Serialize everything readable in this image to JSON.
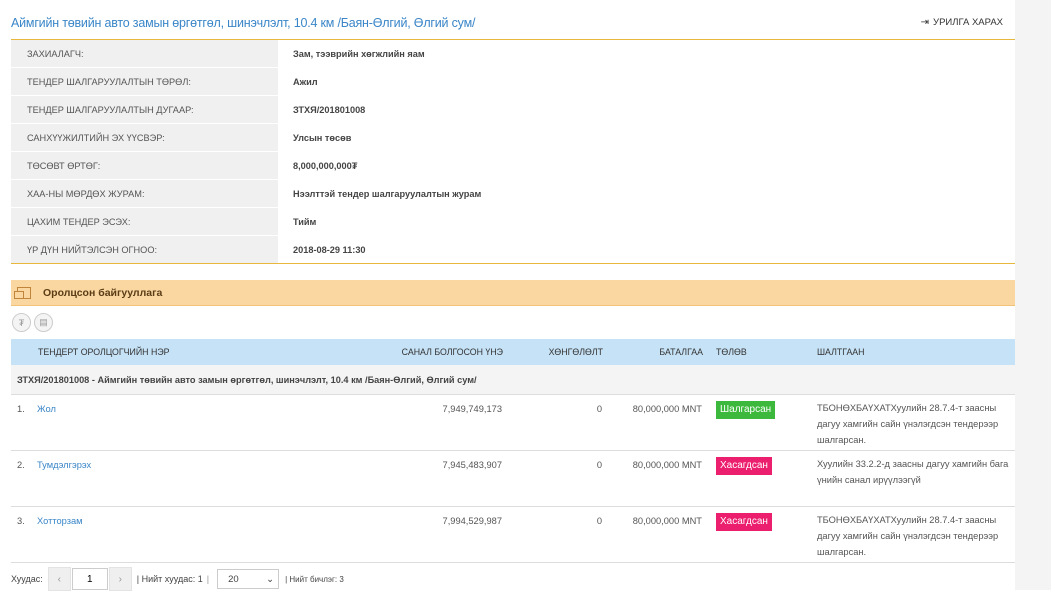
{
  "header": {
    "title": "Аймгийн төвийн авто замын өргөтгөл, шинэчлэлт, 10.4 км /Баян-Өлгий, Өлгий сум/",
    "back_label": "УРИЛГА ХАРАХ",
    "back_icon": "sign-out-icon"
  },
  "info": [
    {
      "label": "ЗАХИАЛАГЧ:",
      "value": "Зам, тээврийн хөгжлийн яам"
    },
    {
      "label": "ТЕНДЕР ШАЛГАРУУЛАЛТЫН ТӨРӨЛ:",
      "value": "Ажил"
    },
    {
      "label": "ТЕНДЕР ШАЛГАРУУЛАЛТЫН ДУГААР:",
      "value": "ЗТХЯ/201801008"
    },
    {
      "label": "САНХҮҮЖИЛТИЙН ЭХ ҮҮСВЭР:",
      "value": "Улсын төсөв"
    },
    {
      "label": "ТӨСӨВТ ӨРТӨГ:",
      "value": "8,000,000,000₮"
    },
    {
      "label": "ХАА-НЫ МӨРДӨХ ЖУРАМ:",
      "value": "Нээлттэй тендер шалгаруулалтын журам"
    },
    {
      "label": "ЦАХИМ ТЕНДЕР ЭСЭХ:",
      "value": "Тийм"
    },
    {
      "label": "ҮР ДҮН НИЙТЭЛСЭН ОГНОО:",
      "value": "2018-08-29 11:30"
    }
  ],
  "participants": {
    "title": "Оролцсон байгууллага",
    "filter_icons": [
      "currency-icon",
      "document-icon"
    ],
    "columns": {
      "name": "ТЕНДЕРТ ОРОЛЦОГЧИЙН НЭР",
      "price": "САНАЛ БОЛГОСОН ҮНЭ",
      "discount": "ХӨНГӨЛӨЛТ",
      "guarantee": "БАТАЛГАА",
      "status": "ТӨЛӨВ",
      "reason": "ШАЛТГААН"
    },
    "group_label": "ЗТХЯ/201801008 - Аймгийн төвийн авто замын өргөтгөл, шинэчлэлт, 10.4 км /Баян-Өлгий, Өлгий сум/",
    "rows": [
      {
        "index": "1.",
        "name": "Жол",
        "price": "7,949,749,173",
        "discount": "0",
        "guarantee": "80,000,000 MNT",
        "status": "Шалгарсан",
        "status_color": "#3cb93c",
        "reason": "ТБОНӨХБАҮХАТХуулийн 28.7.4-т заасны дагуу хамгийн сайн үнэлэгдсэн тендерээр шалгарсан."
      },
      {
        "index": "2.",
        "name": "Тумдэлгэрэх",
        "price": "7,945,483,907",
        "discount": "0",
        "guarantee": "80,000,000 MNT",
        "status": "Хасагдсан",
        "status_color": "#ec1e6e",
        "reason": "Хуулийн 33.2.2-д заасны дагуу хамгийн бага үнийн санал ирүүлээгүй"
      },
      {
        "index": "3.",
        "name": "Хотторзам",
        "price": "7,994,529,987",
        "discount": "0",
        "guarantee": "80,000,000 MNT",
        "status": "Хасагдсан",
        "status_color": "#ec1e6e",
        "reason": "ТБОНӨХБАҮХАТХуулийн 28.7.4-т заасны дагуу хамгийн сайн үнэлэгдсэн тендерээр шалгарсан."
      }
    ]
  },
  "pager": {
    "page_label": "Хуудас:",
    "prev": "‹",
    "next": "›",
    "current_page": "1",
    "total_pages_label": "| Нийт хуудас: 1",
    "sep": "|",
    "page_size": "20",
    "total_records_label": "| Нийт бичлэг: 3"
  }
}
